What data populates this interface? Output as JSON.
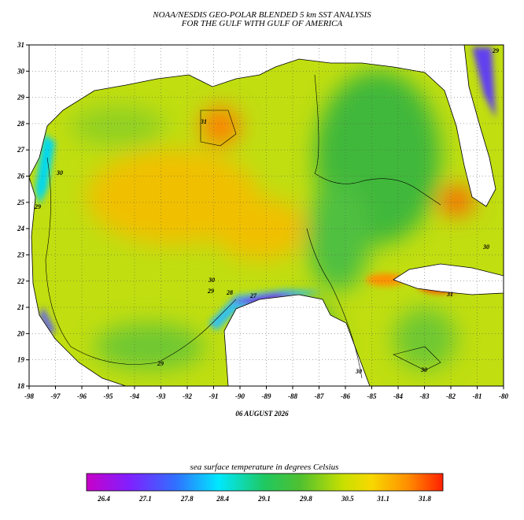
{
  "header": {
    "title_lines": [
      "NOAA/NESDIS GEO-POLAR BLENDED 5 km SST ANALYSIS",
      "FOR THE GULF WITH GULF OF AMERICA"
    ]
  },
  "map": {
    "x_ticks": [
      -98,
      -97,
      -96,
      -95,
      -94,
      -93,
      -92,
      -91,
      -90,
      -89,
      -88,
      -87,
      -86,
      -85,
      -84,
      -83,
      -82,
      -81,
      -80
    ],
    "y_ticks": [
      31,
      30,
      29,
      28,
      27,
      26,
      25,
      24,
      23,
      22,
      21,
      20,
      19,
      18
    ],
    "date": "06 AUGUST 2026",
    "contour_labels": [
      "31",
      "30",
      "29",
      "30",
      "29",
      "28",
      "27",
      "29",
      "30",
      "30",
      "31",
      "30",
      "29"
    ]
  },
  "colorbar": {
    "title": "sea surface temperature in degrees Celsius",
    "ticks": [
      26.4,
      27.1,
      27.8,
      28.4,
      29.1,
      29.8,
      30.5,
      31.1,
      31.8
    ]
  }
}
